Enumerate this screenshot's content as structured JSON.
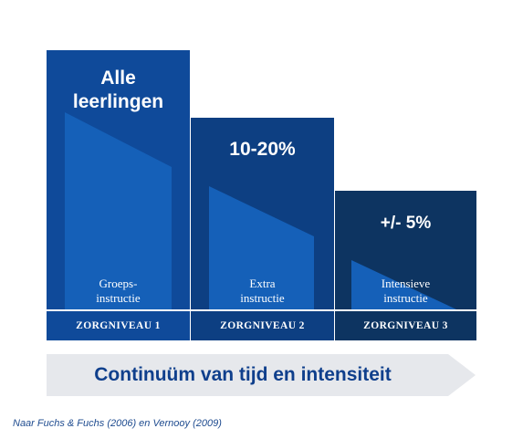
{
  "levels": [
    {
      "heading_line1": "Alle",
      "heading_line2": "leerlingen",
      "desc_line1": "Groeps-",
      "desc_line2": "instructie",
      "footer": "ZORGNIVEAU 1"
    },
    {
      "heading_line1": "10-20%",
      "desc_line1": "Extra",
      "desc_line2": "instructie",
      "footer": "ZORGNIVEAU 2"
    },
    {
      "heading_line1": "+/- 5%",
      "desc_line1": "Intensieve",
      "desc_line2": "instructie",
      "footer": "ZORGNIVEAU 3"
    }
  ],
  "arrow_label": "Continuüm van tijd en intensiteit",
  "source": "Naar Fuchs & Fuchs (2006) en Vernooy (2009)",
  "colors": {
    "level1": "#0f4a9a",
    "level2": "#0d3f82",
    "level3": "#0d3461",
    "wedge": "#1560b8",
    "arrow": "#e6e8ec",
    "arrow_text": "#0f3f8c"
  }
}
